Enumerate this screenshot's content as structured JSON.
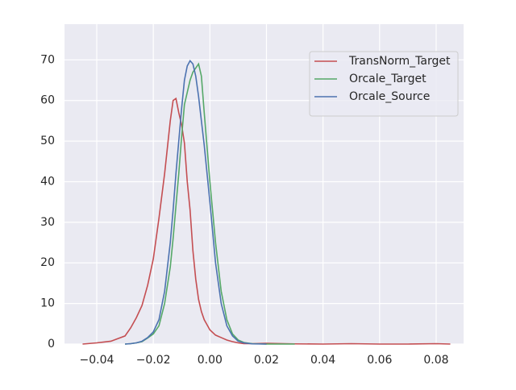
{
  "chart_data": {
    "type": "line",
    "x": [
      -0.045,
      -0.04,
      -0.035,
      -0.03,
      -0.028,
      -0.026,
      -0.024,
      -0.022,
      -0.02,
      -0.018,
      -0.016,
      -0.014,
      -0.013,
      -0.012,
      -0.011,
      -0.01,
      -0.009,
      -0.008,
      -0.007,
      -0.006,
      -0.005,
      -0.004,
      -0.003,
      -0.002,
      0,
      0.002,
      0.004,
      0.006,
      0.008,
      0.01,
      0.012,
      0.015,
      0.02,
      0.03,
      0.04,
      0.05,
      0.06,
      0.07,
      0.08,
      0.085
    ],
    "series": [
      {
        "name": "TransNorm_Target",
        "color": "#c44e52",
        "values": [
          0,
          0.3,
          0.7,
          2,
          4,
          6.5,
          9.5,
          14.5,
          21,
          31,
          42,
          55,
          60,
          60.5,
          57,
          54,
          49.5,
          40,
          33,
          23,
          16,
          11,
          8,
          6,
          3.5,
          2.2,
          1.6,
          1,
          0.6,
          0.3,
          0.1,
          0.1,
          0.2,
          0.05,
          0,
          0.1,
          0,
          0,
          0.1,
          0
        ]
      },
      {
        "name": "Orcale_Target",
        "color": "#55a868",
        "values": [
          null,
          null,
          null,
          0,
          0.1,
          0.3,
          0.6,
          1.5,
          2.5,
          4.5,
          10,
          19,
          26,
          34,
          42,
          51,
          59,
          62,
          65,
          67,
          68,
          69,
          66,
          57,
          40,
          25,
          13,
          6,
          2.5,
          1,
          0.4,
          0.1,
          0,
          0,
          null,
          null,
          null,
          null,
          null,
          null
        ]
      },
      {
        "name": "Orcale_Source",
        "color": "#4c72b0",
        "values": [
          null,
          null,
          null,
          0,
          0.1,
          0.3,
          0.7,
          1.6,
          3,
          6,
          13,
          25,
          33,
          42,
          50,
          58,
          65,
          68.5,
          69.8,
          69,
          66,
          61,
          55,
          49,
          35,
          20,
          10,
          4.5,
          2,
          0.7,
          0.3,
          0.05,
          0,
          null,
          null,
          null,
          null,
          null,
          null,
          null
        ]
      }
    ],
    "xlim": [
      -0.0514,
      0.0897
    ],
    "xticks": [
      {
        "value": -0.04,
        "label": "−0.04"
      },
      {
        "value": -0.02,
        "label": "−0.02"
      },
      {
        "value": 0,
        "label": "0.00"
      },
      0.02,
      0.04,
      0.06,
      0.08
    ],
    "ylim": [
      0,
      78.8
    ],
    "yticks": [
      0,
      10,
      20,
      30,
      40,
      50,
      60,
      70
    ],
    "grid": true,
    "legend": "upper right"
  }
}
